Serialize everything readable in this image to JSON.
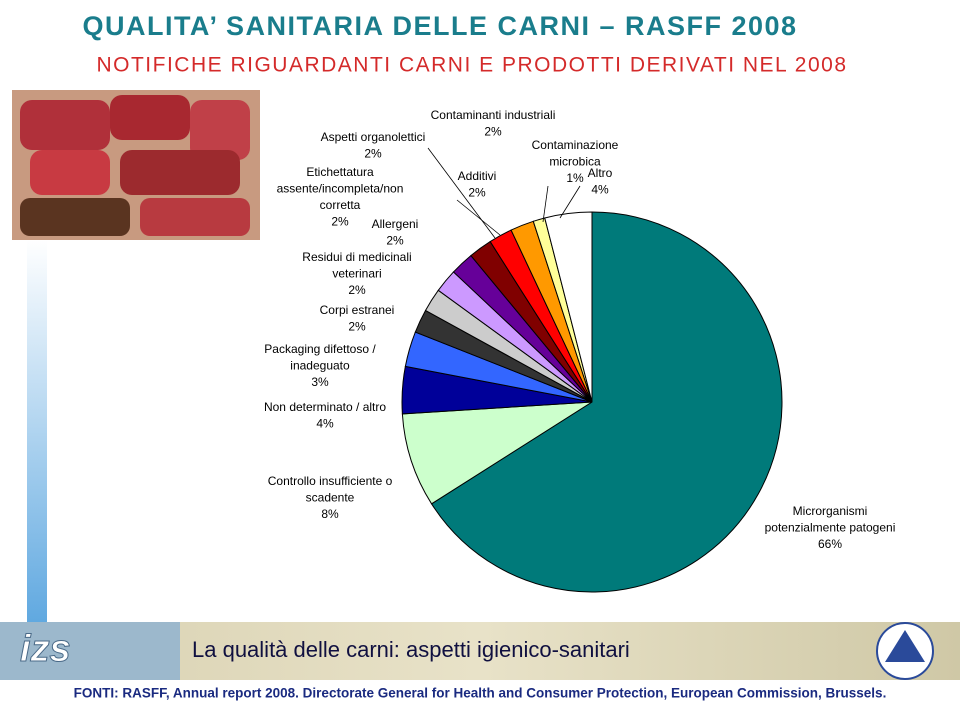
{
  "chart_data": {
    "type": "pie",
    "title": "QUALITA’ SANITARIA DELLE CARNI – RASFF 2008",
    "subtitle": "NOTIFICHE RIGUARDANTI CARNI E PRODOTTI DERIVATI NEL 2008",
    "categories": [
      "Microrganismi potenzialmente patogeni",
      "Controllo insufficiente o scadente",
      "Non determinato / altro",
      "Packaging difettoso / inadeguato",
      "Corpi estranei",
      "Residui di medicinali veterinari",
      "Allergeni",
      "Etichettatura assente/incompleta/non corretta",
      "Aspetti organolettici",
      "Contaminanti industriali",
      "Additivi",
      "Contaminazione microbica",
      "Altro"
    ],
    "values": [
      66,
      8,
      4,
      3,
      2,
      2,
      2,
      2,
      2,
      2,
      2,
      1,
      4
    ],
    "value_labels": [
      "66%",
      "8%",
      "4%",
      "3%",
      "2%",
      "2%",
      "2%",
      "2%",
      "2%",
      "2%",
      "2%",
      "1%",
      "4%"
    ],
    "colors": [
      "#007a7a",
      "#ccffcc",
      "#000099",
      "#3366ff",
      "#333333",
      "#cccccc",
      "#cc99ff",
      "#660099",
      "#800000",
      "#ff0000",
      "#ff9900",
      "#ffff99",
      "#ffffff"
    ]
  },
  "footer": {
    "logo": "izs",
    "banner": "La qualità delle carni: aspetti igienico-sanitari",
    "source": "FONTI: RASFF, Annual report 2008. Directorate General for Health and Consumer Protection, European Commission, Brussels."
  }
}
